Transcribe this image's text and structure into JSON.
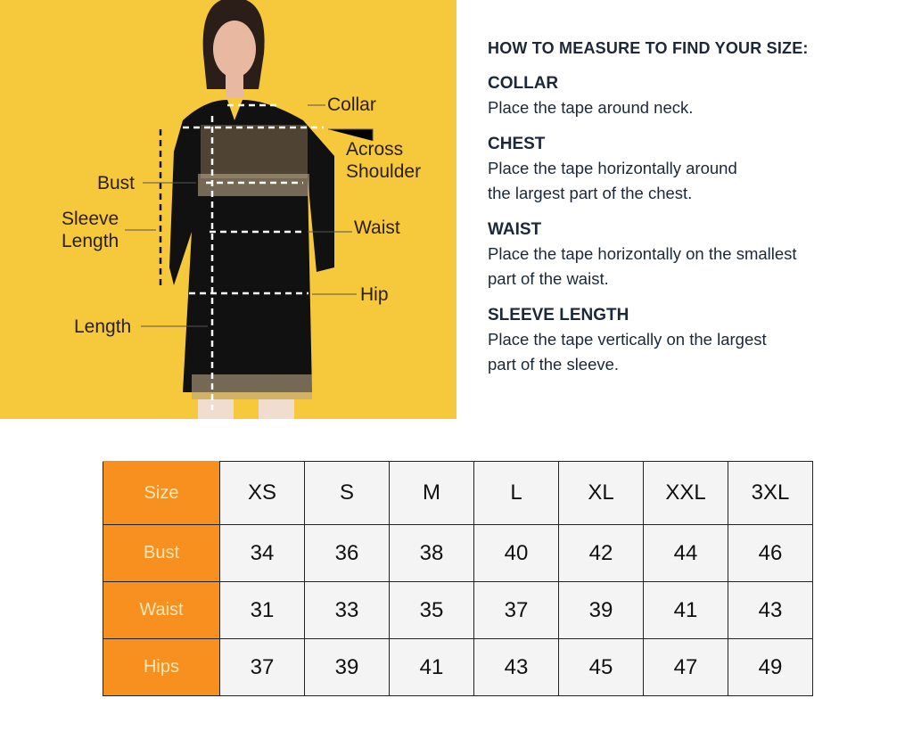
{
  "figure": {
    "labels": {
      "collar": "Collar",
      "across_shoulder_1": "Across",
      "across_shoulder_2": "Shoulder",
      "bust": "Bust",
      "sleeve_1": "Sleeve",
      "sleeve_2": "Length",
      "waist": "Waist",
      "hip": "Hip",
      "length": "Length"
    },
    "background": "#f6c83c"
  },
  "guide": {
    "title": "HOW TO MEASURE TO FIND YOUR SIZE:",
    "sections": [
      {
        "title": "COLLAR",
        "lines": [
          "Place the tape around neck."
        ]
      },
      {
        "title": "CHEST",
        "lines": [
          "Place the tape horizontally around",
          "the largest part of the chest."
        ]
      },
      {
        "title": "WAIST",
        "lines": [
          "Place the tape horizontally on the smallest",
          "part of the waist."
        ]
      },
      {
        "title": "SLEEVE LENGTH",
        "lines": [
          "Place the tape vertically on the largest",
          "part of the sleeve."
        ]
      }
    ]
  },
  "size_table": {
    "header_color": "#f7901e",
    "rows": [
      {
        "label": "Size",
        "values": [
          "XS",
          "S",
          "M",
          "L",
          "XL",
          "XXL",
          "3XL"
        ]
      },
      {
        "label": "Bust",
        "values": [
          "34",
          "36",
          "38",
          "40",
          "42",
          "44",
          "46"
        ]
      },
      {
        "label": "Waist",
        "values": [
          "31",
          "33",
          "35",
          "37",
          "39",
          "41",
          "43"
        ]
      },
      {
        "label": "Hips",
        "values": [
          "37",
          "39",
          "41",
          "43",
          "45",
          "47",
          "49"
        ]
      }
    ]
  }
}
